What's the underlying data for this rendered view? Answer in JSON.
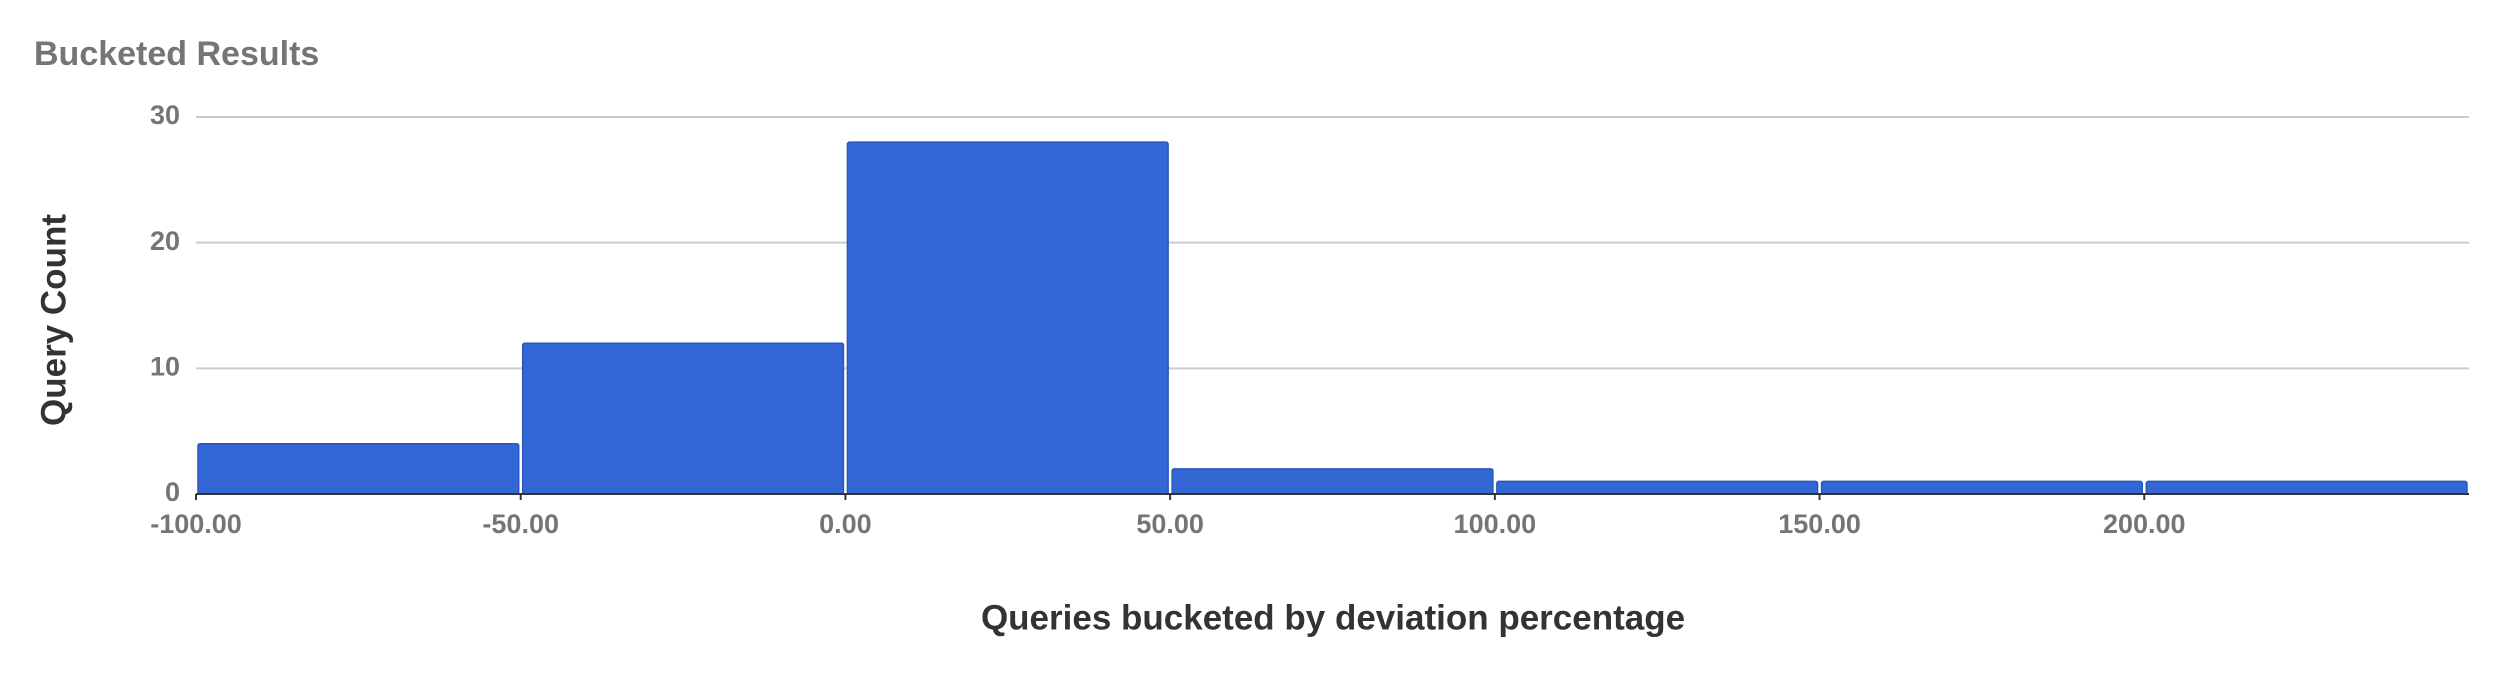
{
  "chart_data": {
    "type": "histogram",
    "title": "Bucketed Results",
    "x_label": "Queries bucketed by deviation percentage",
    "y_label": "Query Count",
    "bins": [
      -100,
      -50,
      0,
      50,
      100,
      150,
      200,
      250
    ],
    "values": [
      4,
      12,
      28,
      2,
      1,
      1,
      1
    ],
    "color": "#3367d6",
    "xlim": [
      -100,
      250
    ],
    "xticks": [
      {
        "value": -100,
        "label": "-100.00"
      },
      {
        "value": -50,
        "label": "-50.00"
      },
      {
        "value": 0,
        "label": "0.00"
      },
      {
        "value": 50,
        "label": "50.00"
      },
      {
        "value": 100,
        "label": "100.00"
      },
      {
        "value": 150,
        "label": "150.00"
      },
      {
        "value": 200,
        "label": "200.00"
      }
    ],
    "ylim": [
      0,
      30
    ],
    "yticks": [
      0,
      10,
      20,
      30
    ],
    "grid": true
  }
}
